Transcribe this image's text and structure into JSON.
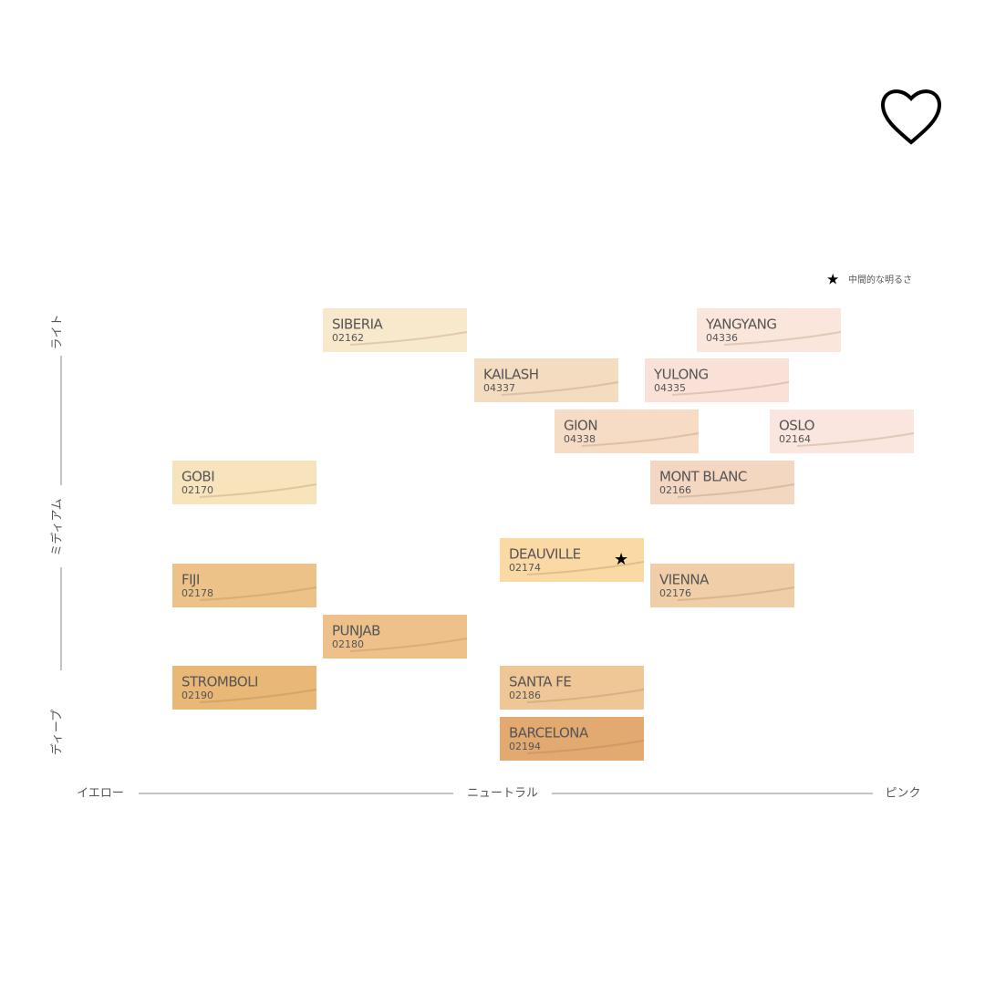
{
  "legend": "中間的な明るさ",
  "y_axis": {
    "labels": [
      "ライト",
      "ミディアム",
      "ディープ"
    ]
  },
  "x_axis": {
    "labels": [
      "イエロー",
      "ニュートラル",
      "ピンク"
    ]
  },
  "swatches": [
    {
      "name": "SIBERIA",
      "code": "02162",
      "color": "#f8e8cc"
    },
    {
      "name": "YANGYANG",
      "code": "04336",
      "color": "#fbe6dc"
    },
    {
      "name": "KAILASH",
      "code": "04337",
      "color": "#f3dcc0"
    },
    {
      "name": "YULONG",
      "code": "04335",
      "color": "#f9e1d8"
    },
    {
      "name": "GION",
      "code": "04338",
      "color": "#f6dbc5"
    },
    {
      "name": "OSLO",
      "code": "02164",
      "color": "#fae6de"
    },
    {
      "name": "GOBI",
      "code": "02170",
      "color": "#f7e3bc"
    },
    {
      "name": "MONT BLANC",
      "code": "02166",
      "color": "#f4d7c0"
    },
    {
      "name": "DEAUVILLE",
      "code": "02174",
      "color": "#fad9a4",
      "starred": true
    },
    {
      "name": "FIJI",
      "code": "02178",
      "color": "#edc288"
    },
    {
      "name": "VIENNA",
      "code": "02176",
      "color": "#f0cea8"
    },
    {
      "name": "PUNJAB",
      "code": "02180",
      "color": "#efc18a"
    },
    {
      "name": "STROMBOLI",
      "code": "02190",
      "color": "#e9b776"
    },
    {
      "name": "SANTA FE",
      "code": "02186",
      "color": "#efc695"
    },
    {
      "name": "BARCELONA",
      "code": "02194",
      "color": "#e2a970"
    }
  ]
}
